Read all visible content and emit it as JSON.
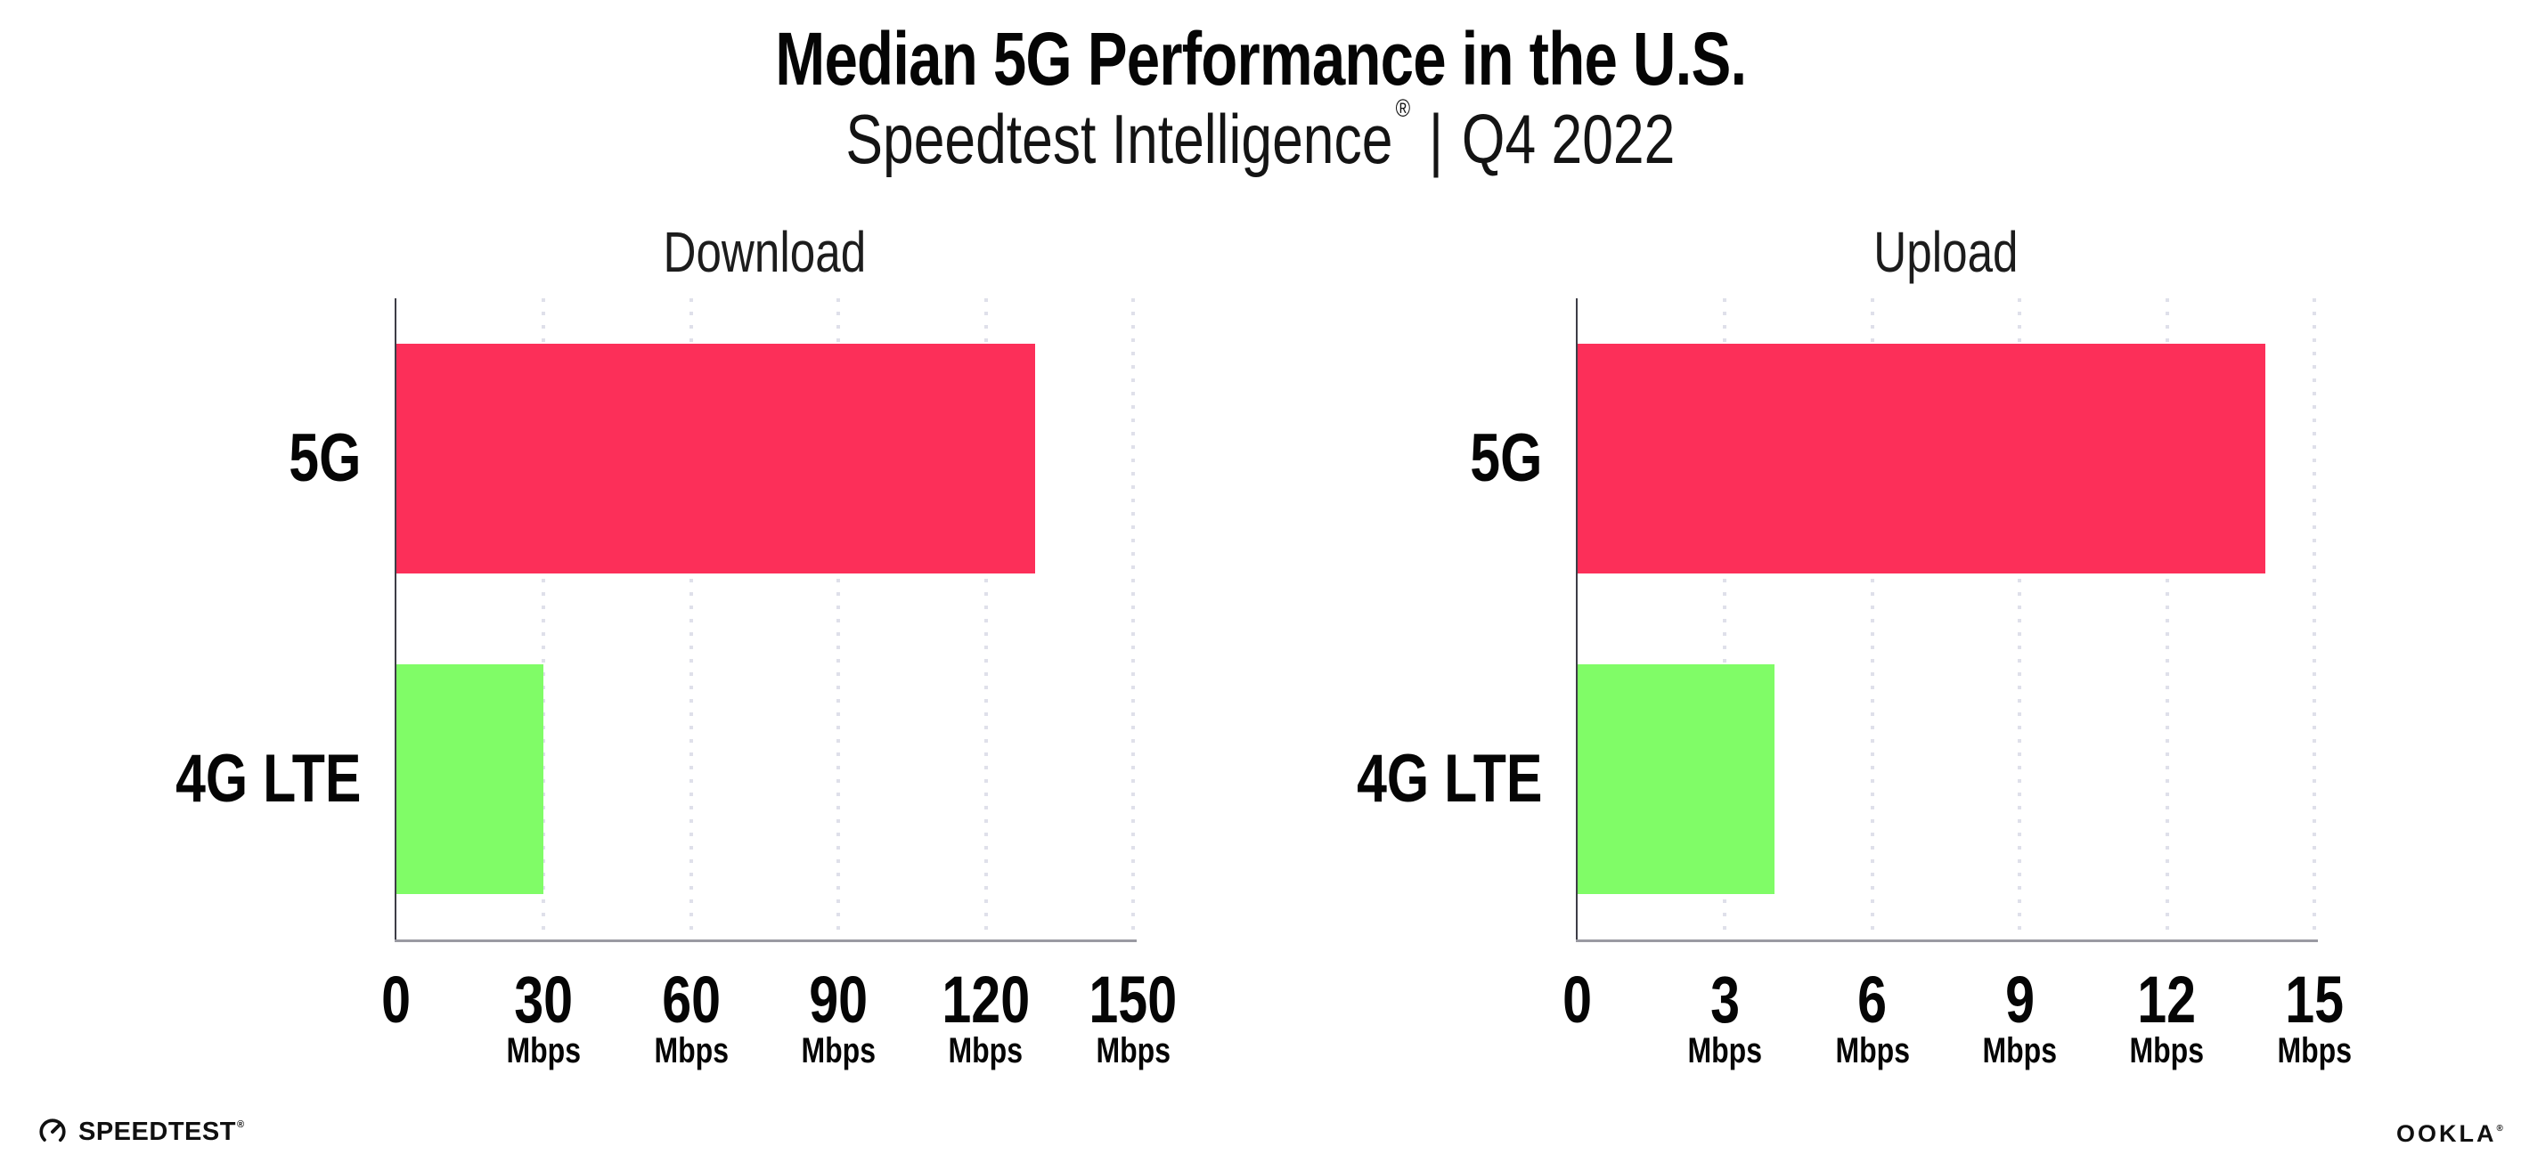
{
  "header": {
    "title": "Median 5G Performance in the U.S.",
    "subtitle_brand": "Speedtest Intelligence",
    "subtitle_reg": "®",
    "subtitle_sep": "|",
    "subtitle_period": "Q4 2022"
  },
  "colors": {
    "bar_5g": "#FC2F59",
    "bar_4g_lte": "#80FC67",
    "gridline": "#DFE0EA",
    "y_axis": "#3D3D46",
    "x_axis": "#9A9AA2",
    "text": "#050505",
    "background": "#FFFFFF"
  },
  "chart_data": [
    {
      "type": "bar",
      "orientation": "horizontal",
      "title": "Download",
      "categories": [
        "5G",
        "4G LTE"
      ],
      "values": [
        130,
        30
      ],
      "unit": "Mbps",
      "xlim": [
        0,
        150
      ],
      "xticks": [
        0,
        30,
        60,
        90,
        120,
        150
      ],
      "xtick_labels": [
        "0",
        "30",
        "60",
        "90",
        "120",
        "150"
      ],
      "xtick_unit_labels": [
        "",
        "Mbps",
        "Mbps",
        "Mbps",
        "Mbps",
        "Mbps"
      ],
      "bar_colors": [
        "#FC2F59",
        "#80FC67"
      ],
      "grid": "dotted-vertical",
      "legend": "none"
    },
    {
      "type": "bar",
      "orientation": "horizontal",
      "title": "Upload",
      "categories": [
        "5G",
        "4G LTE"
      ],
      "values": [
        14,
        4
      ],
      "unit": "Mbps",
      "xlim": [
        0,
        15
      ],
      "xticks": [
        0,
        3,
        6,
        9,
        12,
        15
      ],
      "xtick_labels": [
        "0",
        "3",
        "6",
        "9",
        "12",
        "15"
      ],
      "xtick_unit_labels": [
        "",
        "Mbps",
        "Mbps",
        "Mbps",
        "Mbps",
        "Mbps"
      ],
      "bar_colors": [
        "#FC2F59",
        "#80FC67"
      ],
      "grid": "dotted-vertical",
      "legend": "none"
    }
  ],
  "footer": {
    "speedtest_label": "SPEEDTEST",
    "speedtest_mark": "®",
    "ookla_label": "OOKLA",
    "ookla_mark": "®"
  }
}
